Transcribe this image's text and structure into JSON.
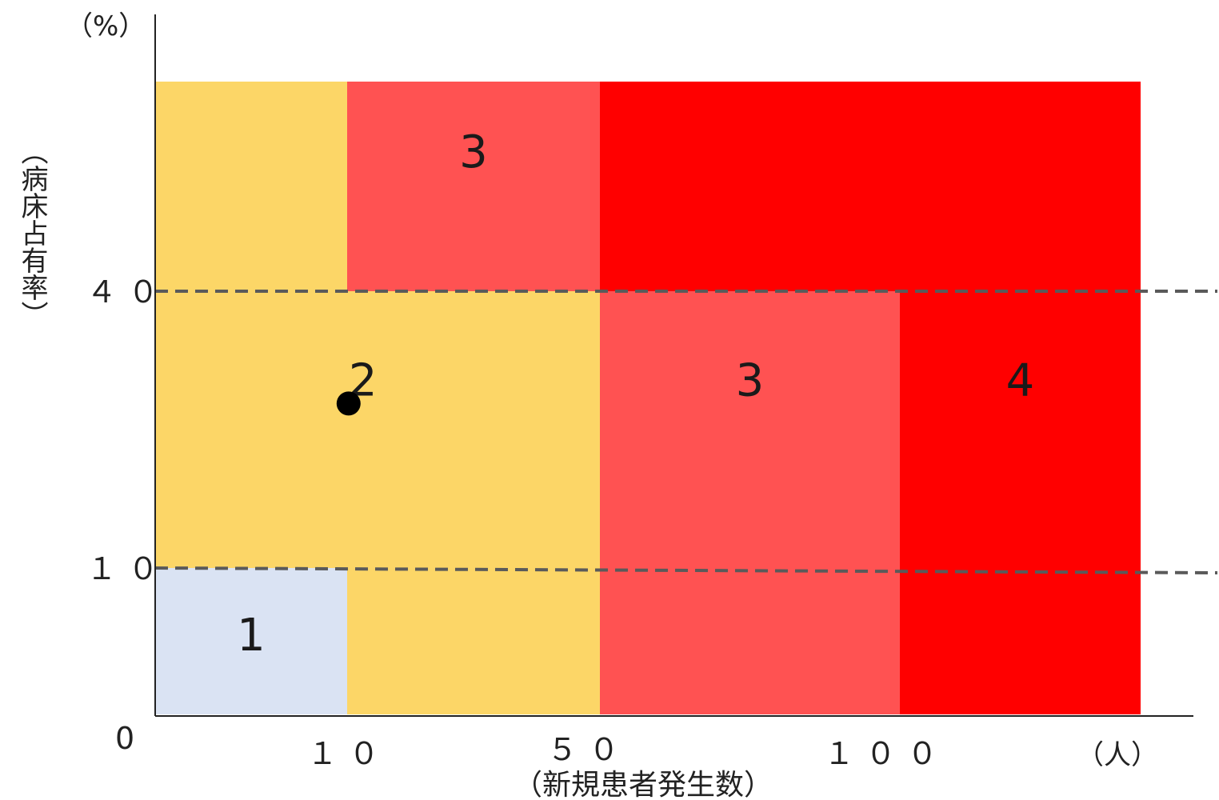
{
  "chart_data": {
    "type": "heatmap",
    "title": "",
    "xlabel": "（新規患者発生数）",
    "ylabel": "（病床占有率）",
    "x_unit": "（人）",
    "y_unit": "（%）",
    "origin_label": "0",
    "x_ticks": [
      {
        "value": 10,
        "label": "１０"
      },
      {
        "value": 50,
        "label": "５０"
      },
      {
        "value": 100,
        "label": "１００"
      }
    ],
    "y_ticks": [
      {
        "value": 10,
        "label": "１０"
      },
      {
        "value": 40,
        "label": "４０"
      }
    ],
    "zones": [
      {
        "name": "zone-1-low",
        "x": [
          0,
          10
        ],
        "y": [
          0,
          10
        ],
        "level": "1",
        "color": "#DAE3F3",
        "show_label": true
      },
      {
        "name": "zone-2-left-top",
        "x": [
          0,
          10
        ],
        "y": [
          10,
          60
        ],
        "level": "2",
        "color": "#FCD667",
        "show_label": false
      },
      {
        "name": "zone-2-mid",
        "x": [
          10,
          50
        ],
        "y": [
          0,
          40
        ],
        "level": "2",
        "color": "#FCD667",
        "show_label": true
      },
      {
        "name": "zone-3-top",
        "x": [
          10,
          50
        ],
        "y": [
          40,
          60
        ],
        "level": "3",
        "color": "#FF5252",
        "show_label": true
      },
      {
        "name": "zone-3-mid",
        "x": [
          50,
          100
        ],
        "y": [
          0,
          40
        ],
        "level": "3",
        "color": "#FF5252",
        "show_label": true
      },
      {
        "name": "zone-4-top",
        "x": [
          50,
          130
        ],
        "y": [
          40,
          60
        ],
        "level": "4",
        "color": "#FF0000",
        "show_label": false
      },
      {
        "name": "zone-4-right",
        "x": [
          100,
          130
        ],
        "y": [
          0,
          40
        ],
        "level": "4",
        "color": "#FF0000",
        "show_label": true
      }
    ],
    "threshold_lines": [
      10,
      40
    ],
    "point": {
      "x": 12,
      "y": 28
    },
    "grid": false,
    "legend": "none"
  }
}
